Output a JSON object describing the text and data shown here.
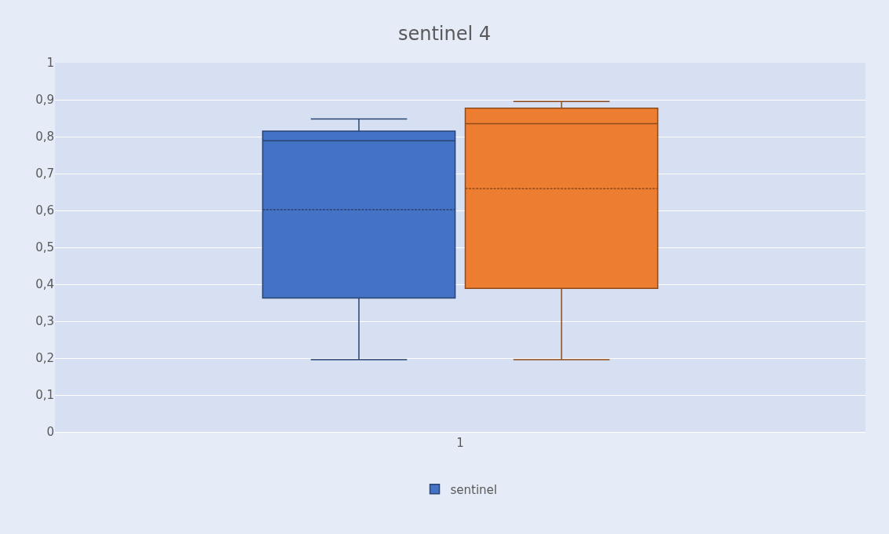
{
  "chart_data": {
    "type": "box",
    "title": "sentinel 4",
    "categories": [
      "1"
    ],
    "series": [
      {
        "name": "sentinel",
        "color": "#4472c4",
        "boxes": [
          {
            "low": 0.196,
            "q1": 0.363,
            "median": 0.789,
            "q3": 0.815,
            "high": 0.848,
            "mean": 0.602
          }
        ]
      },
      {
        "color": "#ed7d31",
        "boxes": [
          {
            "low": 0.196,
            "q1": 0.389,
            "median": 0.835,
            "q3": 0.877,
            "high": 0.895,
            "mean": 0.659
          }
        ]
      }
    ],
    "ylim": [
      0,
      1
    ],
    "yticks": [
      {
        "value": 0,
        "label": "0"
      },
      {
        "value": 0.1,
        "label": "0,1"
      },
      {
        "value": 0.2,
        "label": "0,2"
      },
      {
        "value": 0.3,
        "label": "0,3"
      },
      {
        "value": 0.4,
        "label": "0,4"
      },
      {
        "value": 0.5,
        "label": "0,5"
      },
      {
        "value": 0.6,
        "label": "0,6"
      },
      {
        "value": 0.7,
        "label": "0,7"
      },
      {
        "value": 0.8,
        "label": "0,8"
      },
      {
        "value": 0.9,
        "label": "0,9"
      },
      {
        "value": 1,
        "label": "1"
      }
    ],
    "grid": "y",
    "legend": "bottom"
  }
}
